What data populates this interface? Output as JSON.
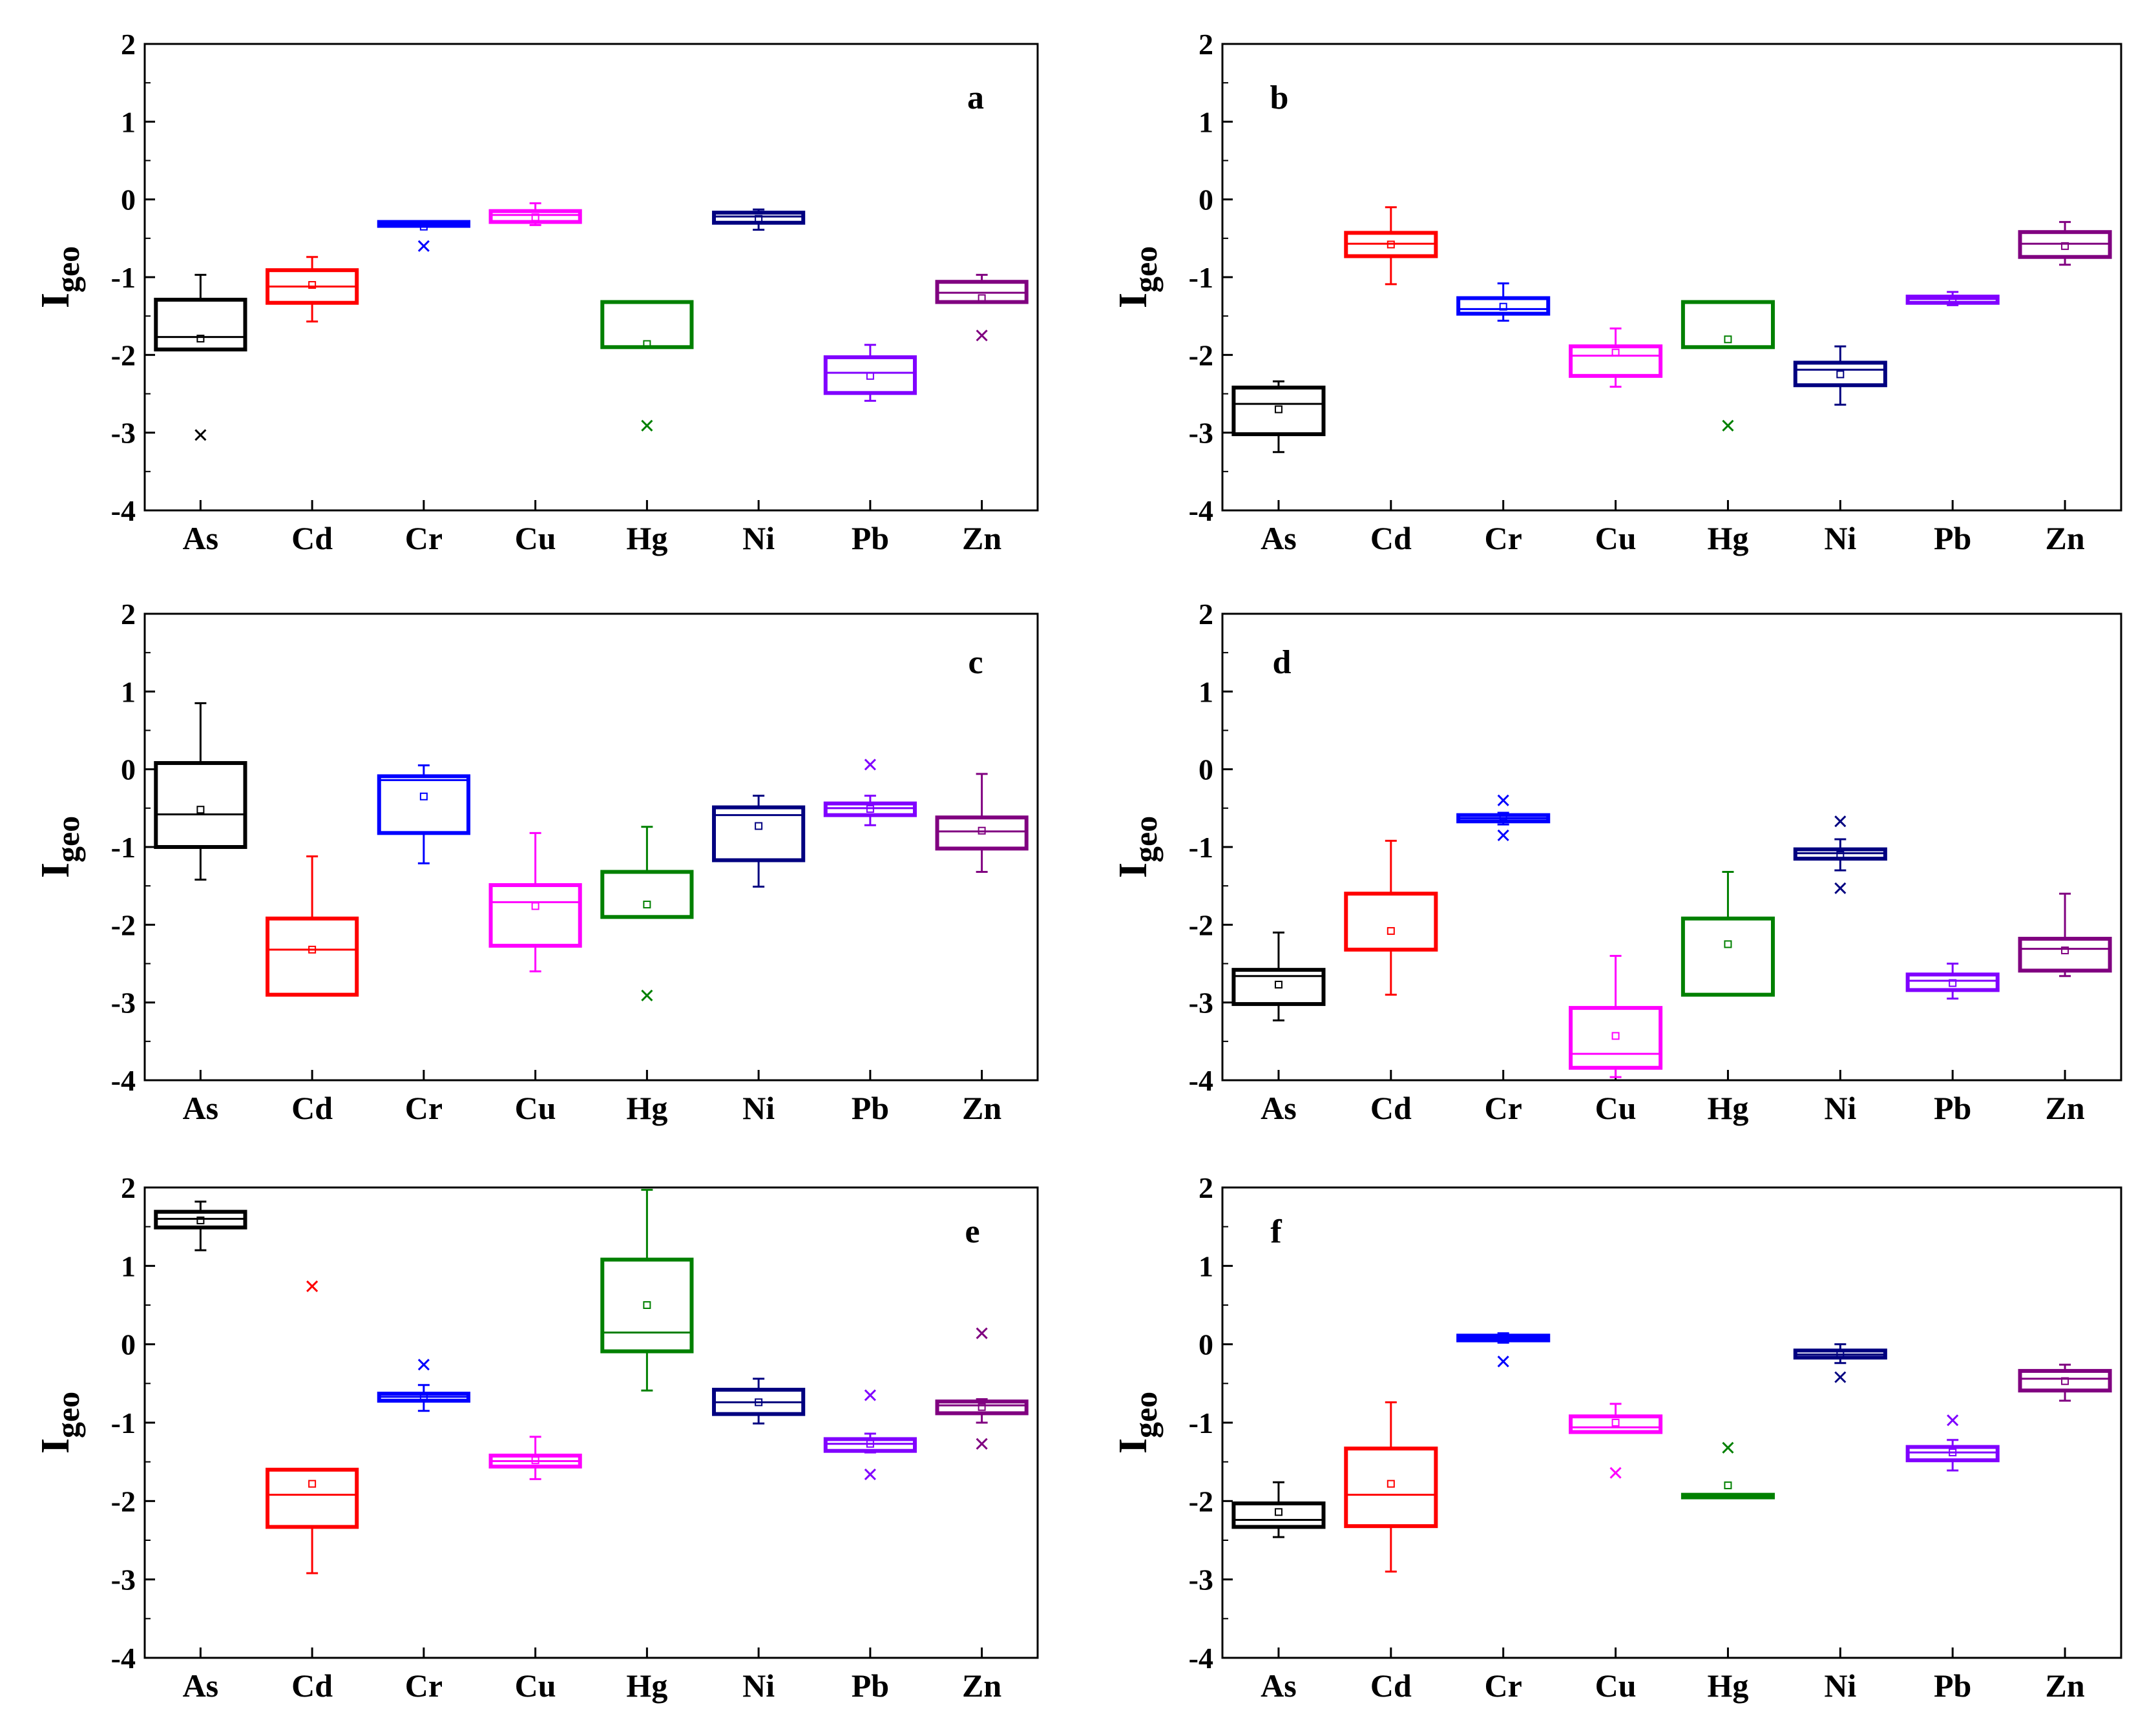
{
  "series_colors": {
    "As": "#000000",
    "Cd": "#ff0000",
    "Cr": "#0000ff",
    "Cu": "#ff00ff",
    "Hg": "#008000",
    "Ni": "#000080",
    "Pb": "#8000ff",
    "Zn": "#800080"
  },
  "chart_data": [
    {
      "type": "box",
      "panel_label": "a",
      "ylabel_main": "I",
      "ylabel_sub": "geo",
      "categories": [
        "As",
        "Cd",
        "Cr",
        "Cu",
        "Hg",
        "Ni",
        "Pb",
        "Zn"
      ],
      "ylim": [
        -4,
        2
      ],
      "yticks": [
        -4,
        -3,
        -2,
        -1,
        0,
        1,
        2
      ],
      "boxes": [
        {
          "q1": -1.93,
          "median": -1.77,
          "q3": -1.29,
          "mean": -1.79,
          "whisker_low": -1.93,
          "whisker_high": -0.97,
          "outliers": [
            -3.03
          ]
        },
        {
          "q1": -1.33,
          "median": -1.12,
          "q3": -0.91,
          "mean": -1.1,
          "whisker_low": -1.57,
          "whisker_high": -0.74,
          "outliers": []
        },
        {
          "q1": -0.34,
          "median": -0.31,
          "q3": -0.29,
          "mean": -0.35,
          "whisker_low": -0.34,
          "whisker_high": -0.29,
          "outliers": [
            -0.6
          ]
        },
        {
          "q1": -0.29,
          "median": -0.2,
          "q3": -0.15,
          "mean": -0.23,
          "whisker_low": -0.33,
          "whisker_high": -0.05,
          "outliers": []
        },
        {
          "q1": -1.9,
          "median": -1.9,
          "q3": -1.32,
          "mean": -1.86,
          "whisker_low": -1.9,
          "whisker_high": -1.32,
          "outliers": [
            -2.91
          ]
        },
        {
          "q1": -0.3,
          "median": -0.22,
          "q3": -0.17,
          "mean": -0.25,
          "whisker_low": -0.39,
          "whisker_high": -0.13,
          "outliers": []
        },
        {
          "q1": -2.49,
          "median": -2.23,
          "q3": -2.03,
          "mean": -2.27,
          "whisker_low": -2.59,
          "whisker_high": -1.87,
          "outliers": []
        },
        {
          "q1": -1.32,
          "median": -1.2,
          "q3": -1.06,
          "mean": -1.27,
          "whisker_low": -1.32,
          "whisker_high": -0.97,
          "outliers": [
            -1.75
          ]
        }
      ]
    },
    {
      "type": "box",
      "panel_label": "b",
      "ylabel_main": "I",
      "ylabel_sub": "geo",
      "categories": [
        "As",
        "Cd",
        "Cr",
        "Cu",
        "Hg",
        "Ni",
        "Pb",
        "Zn"
      ],
      "ylim": [
        -4,
        2
      ],
      "yticks": [
        -4,
        -3,
        -2,
        -1,
        0,
        1,
        2
      ],
      "boxes": [
        {
          "q1": -3.02,
          "median": -2.63,
          "q3": -2.42,
          "mean": -2.7,
          "whisker_low": -3.25,
          "whisker_high": -2.34,
          "outliers": []
        },
        {
          "q1": -0.73,
          "median": -0.57,
          "q3": -0.43,
          "mean": -0.58,
          "whisker_low": -1.09,
          "whisker_high": -0.1,
          "outliers": []
        },
        {
          "q1": -1.47,
          "median": -1.41,
          "q3": -1.27,
          "mean": -1.38,
          "whisker_low": -1.56,
          "whisker_high": -1.08,
          "outliers": []
        },
        {
          "q1": -2.27,
          "median": -2.01,
          "q3": -1.89,
          "mean": -1.97,
          "whisker_low": -2.41,
          "whisker_high": -1.66,
          "outliers": []
        },
        {
          "q1": -1.9,
          "median": -1.9,
          "q3": -1.32,
          "mean": -1.8,
          "whisker_low": -1.9,
          "whisker_high": -1.32,
          "outliers": [
            -2.91
          ]
        },
        {
          "q1": -2.39,
          "median": -2.19,
          "q3": -2.1,
          "mean": -2.25,
          "whisker_low": -2.64,
          "whisker_high": -1.89,
          "outliers": []
        },
        {
          "q1": -1.33,
          "median": -1.28,
          "q3": -1.25,
          "mean": -1.29,
          "whisker_low": -1.36,
          "whisker_high": -1.19,
          "outliers": []
        },
        {
          "q1": -0.74,
          "median": -0.57,
          "q3": -0.42,
          "mean": -0.6,
          "whisker_low": -0.84,
          "whisker_high": -0.29,
          "outliers": []
        }
      ]
    },
    {
      "type": "box",
      "panel_label": "c",
      "ylabel_main": "I",
      "ylabel_sub": "geo",
      "categories": [
        "As",
        "Cd",
        "Cr",
        "Cu",
        "Hg",
        "Ni",
        "Pb",
        "Zn"
      ],
      "ylim": [
        -4,
        2
      ],
      "yticks": [
        -4,
        -3,
        -2,
        -1,
        0,
        1,
        2
      ],
      "boxes": [
        {
          "q1": -1.0,
          "median": -0.58,
          "q3": 0.08,
          "mean": -0.52,
          "whisker_low": -1.42,
          "whisker_high": 0.85,
          "outliers": []
        },
        {
          "q1": -2.9,
          "median": -2.32,
          "q3": -1.92,
          "mean": -2.32,
          "whisker_low": -2.9,
          "whisker_high": -1.12,
          "outliers": []
        },
        {
          "q1": -0.82,
          "median": -0.14,
          "q3": -0.09,
          "mean": -0.35,
          "whisker_low": -1.21,
          "whisker_high": 0.05,
          "outliers": []
        },
        {
          "q1": -2.27,
          "median": -1.71,
          "q3": -1.49,
          "mean": -1.76,
          "whisker_low": -2.6,
          "whisker_high": -0.82,
          "outliers": []
        },
        {
          "q1": -1.9,
          "median": -1.9,
          "q3": -1.32,
          "mean": -1.74,
          "whisker_low": -1.9,
          "whisker_high": -0.74,
          "outliers": [
            -2.91
          ]
        },
        {
          "q1": -1.17,
          "median": -0.59,
          "q3": -0.49,
          "mean": -0.73,
          "whisker_low": -1.51,
          "whisker_high": -0.34,
          "outliers": []
        },
        {
          "q1": -0.59,
          "median": -0.5,
          "q3": -0.44,
          "mean": -0.51,
          "whisker_low": -0.72,
          "whisker_high": -0.34,
          "outliers": [
            0.06
          ]
        },
        {
          "q1": -1.02,
          "median": -0.8,
          "q3": -0.62,
          "mean": -0.79,
          "whisker_low": -1.32,
          "whisker_high": -0.06,
          "outliers": []
        }
      ]
    },
    {
      "type": "box",
      "panel_label": "d",
      "ylabel_main": "I",
      "ylabel_sub": "geo",
      "categories": [
        "As",
        "Cd",
        "Cr",
        "Cu",
        "Hg",
        "Ni",
        "Pb",
        "Zn"
      ],
      "ylim": [
        -4,
        2
      ],
      "yticks": [
        -4,
        -3,
        -2,
        -1,
        0,
        1,
        2
      ],
      "boxes": [
        {
          "q1": -3.02,
          "median": -2.66,
          "q3": -2.58,
          "mean": -2.77,
          "whisker_low": -3.23,
          "whisker_high": -2.1,
          "outliers": []
        },
        {
          "q1": -2.32,
          "median": -1.6,
          "q3": -1.6,
          "mean": -2.08,
          "whisker_low": -2.9,
          "whisker_high": -0.92,
          "outliers": []
        },
        {
          "q1": -0.67,
          "median": -0.63,
          "q3": -0.59,
          "mean": -0.61,
          "whisker_low": -0.71,
          "whisker_high": -0.56,
          "outliers": [
            -0.4,
            -0.85
          ]
        },
        {
          "q1": -3.84,
          "median": -3.66,
          "q3": -3.07,
          "mean": -3.43,
          "whisker_low": -3.96,
          "whisker_high": -2.4,
          "outliers": []
        },
        {
          "q1": -2.9,
          "median": -1.92,
          "q3": -1.92,
          "mean": -2.25,
          "whisker_low": -2.9,
          "whisker_high": -1.32,
          "outliers": []
        },
        {
          "q1": -1.15,
          "median": -1.08,
          "q3": -1.03,
          "mean": -1.1,
          "whisker_low": -1.3,
          "whisker_high": -0.9,
          "outliers": [
            -0.67,
            -1.53
          ]
        },
        {
          "q1": -2.84,
          "median": -2.72,
          "q3": -2.64,
          "mean": -2.75,
          "whisker_low": -2.95,
          "whisker_high": -2.5,
          "outliers": []
        },
        {
          "q1": -2.59,
          "median": -2.31,
          "q3": -2.18,
          "mean": -2.33,
          "whisker_low": -2.66,
          "whisker_high": -1.6,
          "outliers": []
        }
      ]
    },
    {
      "type": "box",
      "panel_label": "e",
      "ylabel_main": "I",
      "ylabel_sub": "geo",
      "categories": [
        "As",
        "Cd",
        "Cr",
        "Cu",
        "Hg",
        "Ni",
        "Pb",
        "Zn"
      ],
      "ylim": [
        -4,
        2
      ],
      "yticks": [
        -4,
        -3,
        -2,
        -1,
        0,
        1,
        2
      ],
      "boxes": [
        {
          "q1": 1.49,
          "median": 1.6,
          "q3": 1.69,
          "mean": 1.58,
          "whisker_low": 1.2,
          "whisker_high": 1.82,
          "outliers": []
        },
        {
          "q1": -2.33,
          "median": -1.92,
          "q3": -1.6,
          "mean": -1.78,
          "whisker_low": -2.92,
          "whisker_high": -1.6,
          "outliers": [
            0.74
          ]
        },
        {
          "q1": -0.72,
          "median": -0.67,
          "q3": -0.63,
          "mean": -0.68,
          "whisker_low": -0.85,
          "whisker_high": -0.52,
          "outliers": [
            -0.26
          ]
        },
        {
          "q1": -1.56,
          "median": -1.49,
          "q3": -1.42,
          "mean": -1.48,
          "whisker_low": -1.72,
          "whisker_high": -1.18,
          "outliers": []
        },
        {
          "q1": -0.09,
          "median": 0.15,
          "q3": 1.08,
          "mean": 0.5,
          "whisker_low": -0.59,
          "whisker_high": 1.97,
          "outliers": []
        },
        {
          "q1": -0.89,
          "median": -0.74,
          "q3": -0.58,
          "mean": -0.74,
          "whisker_low": -1.01,
          "whisker_high": -0.44,
          "outliers": []
        },
        {
          "q1": -1.36,
          "median": -1.27,
          "q3": -1.21,
          "mean": -1.27,
          "whisker_low": -1.38,
          "whisker_high": -1.14,
          "outliers": [
            -0.65,
            -1.66
          ]
        },
        {
          "q1": -0.88,
          "median": -0.78,
          "q3": -0.73,
          "mean": -0.8,
          "whisker_low": -1.0,
          "whisker_high": -0.7,
          "outliers": [
            0.14,
            -1.27
          ]
        }
      ]
    },
    {
      "type": "box",
      "panel_label": "f",
      "ylabel_main": "I",
      "ylabel_sub": "geo",
      "categories": [
        "As",
        "Cd",
        "Cr",
        "Cu",
        "Hg",
        "Ni",
        "Pb",
        "Zn"
      ],
      "ylim": [
        -4,
        2
      ],
      "yticks": [
        -4,
        -3,
        -2,
        -1,
        0,
        1,
        2
      ],
      "boxes": [
        {
          "q1": -2.33,
          "median": -2.24,
          "q3": -2.03,
          "mean": -2.14,
          "whisker_low": -2.46,
          "whisker_high": -1.76,
          "outliers": []
        },
        {
          "q1": -2.32,
          "median": -1.92,
          "q3": -1.33,
          "mean": -1.78,
          "whisker_low": -2.9,
          "whisker_high": -0.74,
          "outliers": []
        },
        {
          "q1": 0.05,
          "median": 0.08,
          "q3": 0.11,
          "mean": 0.08,
          "whisker_low": 0.02,
          "whisker_high": 0.14,
          "outliers": [
            -0.22
          ]
        },
        {
          "q1": -1.12,
          "median": -1.06,
          "q3": -0.92,
          "mean": -1.0,
          "whisker_low": -1.12,
          "whisker_high": -0.76,
          "outliers": [
            -1.64
          ]
        },
        {
          "q1": -1.92,
          "median": -1.92,
          "q3": -1.92,
          "mean": -1.8,
          "whisker_low": -1.92,
          "whisker_high": -1.92,
          "outliers": [
            -1.32
          ]
        },
        {
          "q1": -0.17,
          "median": -0.13,
          "q3": -0.08,
          "mean": -0.12,
          "whisker_low": -0.24,
          "whisker_high": 0.0,
          "outliers": [
            -0.42
          ]
        },
        {
          "q1": -1.48,
          "median": -1.38,
          "q3": -1.31,
          "mean": -1.38,
          "whisker_low": -1.61,
          "whisker_high": -1.22,
          "outliers": [
            -0.97
          ]
        },
        {
          "q1": -0.59,
          "median": -0.44,
          "q3": -0.34,
          "mean": -0.47,
          "whisker_low": -0.72,
          "whisker_high": -0.26,
          "outliers": []
        }
      ]
    }
  ]
}
